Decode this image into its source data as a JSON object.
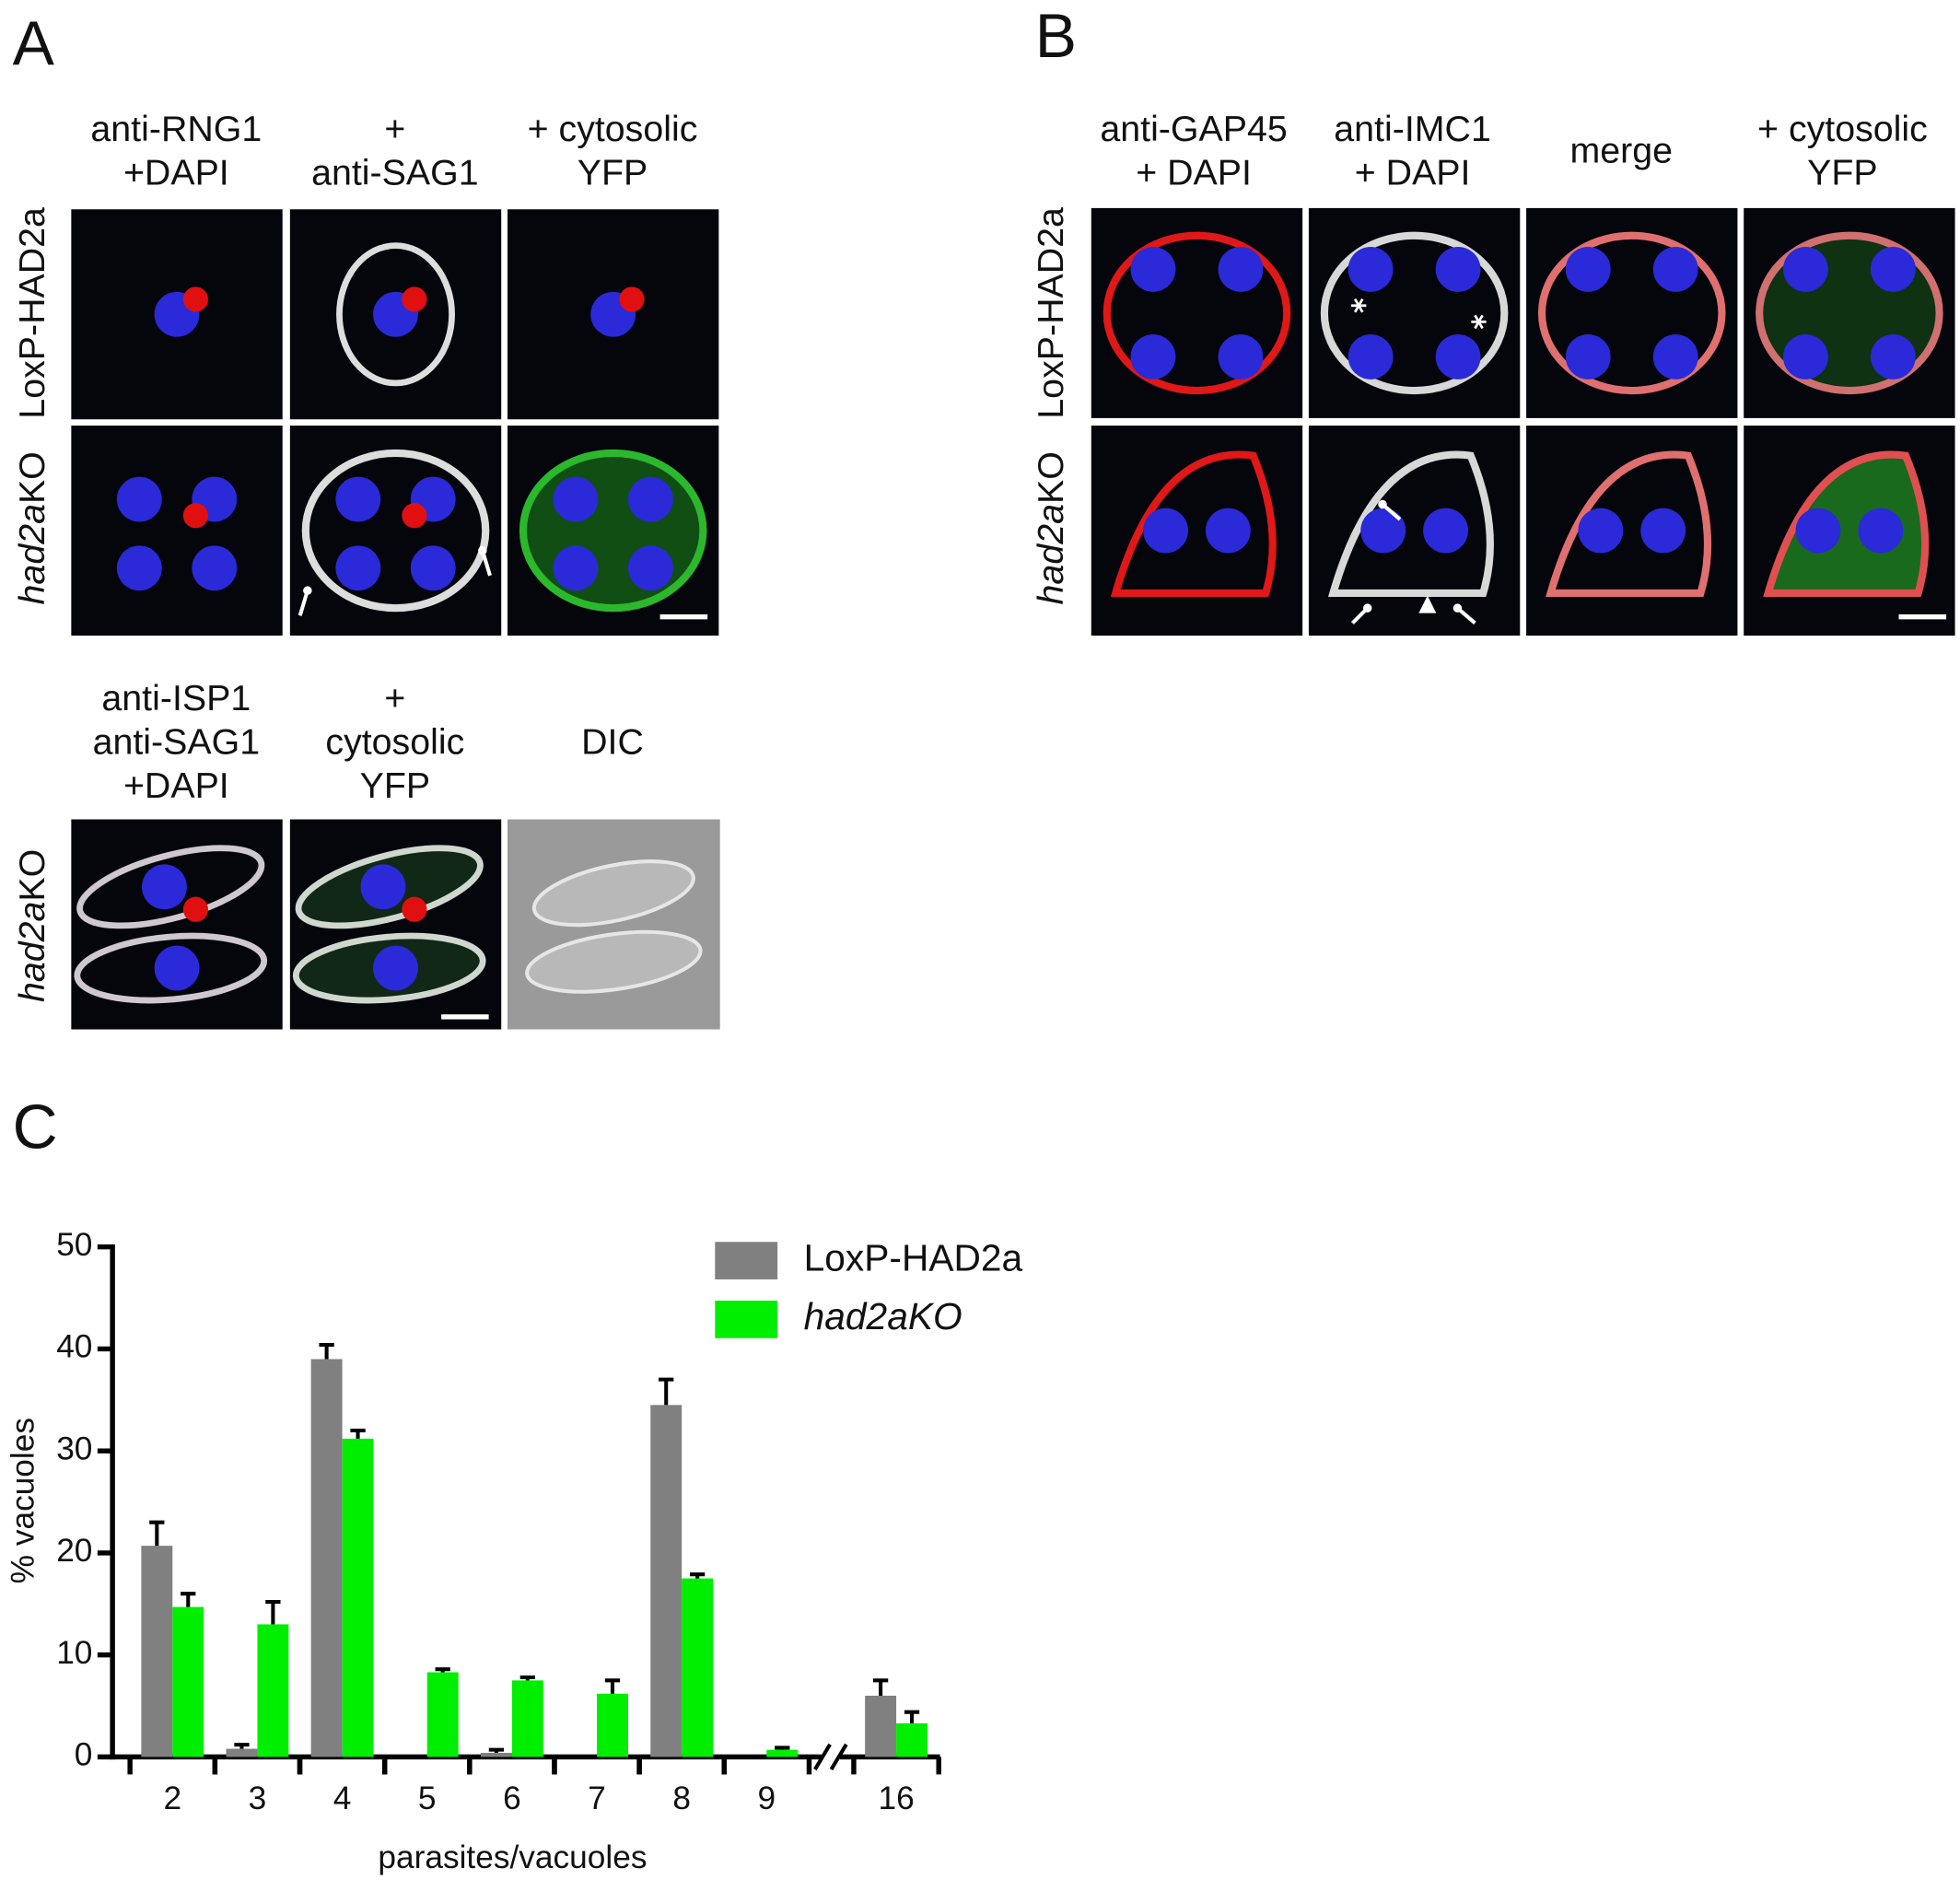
{
  "panels": {
    "A": {
      "label": "A",
      "top_headers": [
        [
          "anti-RNG1",
          "+DAPI"
        ],
        [
          "+",
          "anti-SAG1"
        ],
        [
          "+ cytosolic",
          "YFP"
        ]
      ],
      "top_rows": [
        [
          "LoxP-HAD2a"
        ],
        [
          "had2a",
          "KO"
        ]
      ],
      "bottom_headers": [
        [
          "anti-ISP1",
          "anti-SAG1",
          "+DAPI"
        ],
        [
          "+",
          "cytosolic",
          "YFP"
        ],
        [
          "DIC"
        ]
      ],
      "bottom_row": [
        "had2a",
        "KO"
      ]
    },
    "B": {
      "label": "B",
      "headers": [
        [
          "anti-GAP45",
          "+ DAPI"
        ],
        [
          "anti-IMC1",
          "+ DAPI"
        ],
        [
          "merge"
        ],
        [
          "+ cytosolic",
          "YFP"
        ]
      ],
      "rows": [
        [
          "LoxP-HAD2a"
        ],
        [
          "had2a",
          "KO"
        ]
      ]
    },
    "C": {
      "label": "C"
    }
  },
  "chart_data": {
    "type": "bar",
    "x_label": "parasites/vacuoles",
    "y_label": "% vacuoles",
    "categories": [
      "2",
      "3",
      "4",
      "5",
      "6",
      "7",
      "8",
      "9",
      "16"
    ],
    "series": [
      {
        "name": "LoxP-HAD2a",
        "color": "#808080",
        "values": [
          20.7,
          0.8,
          39,
          0,
          0.4,
          0,
          34.5,
          0,
          6
        ],
        "errors": [
          2.3,
          0.4,
          1.4,
          0,
          0.3,
          0,
          2.5,
          0,
          1.5
        ]
      },
      {
        "name": "had2aKO",
        "color": "#00ee00",
        "values": [
          14.7,
          13,
          31.2,
          8.3,
          7.5,
          6.2,
          17.5,
          0.7,
          3.3
        ],
        "errors": [
          1.3,
          2.2,
          0.8,
          0.3,
          0.3,
          1.3,
          0.4,
          0.2,
          1.1
        ]
      }
    ],
    "ylim": [
      0,
      50
    ],
    "yticks": [
      0,
      10,
      20,
      30,
      40,
      50
    ]
  }
}
